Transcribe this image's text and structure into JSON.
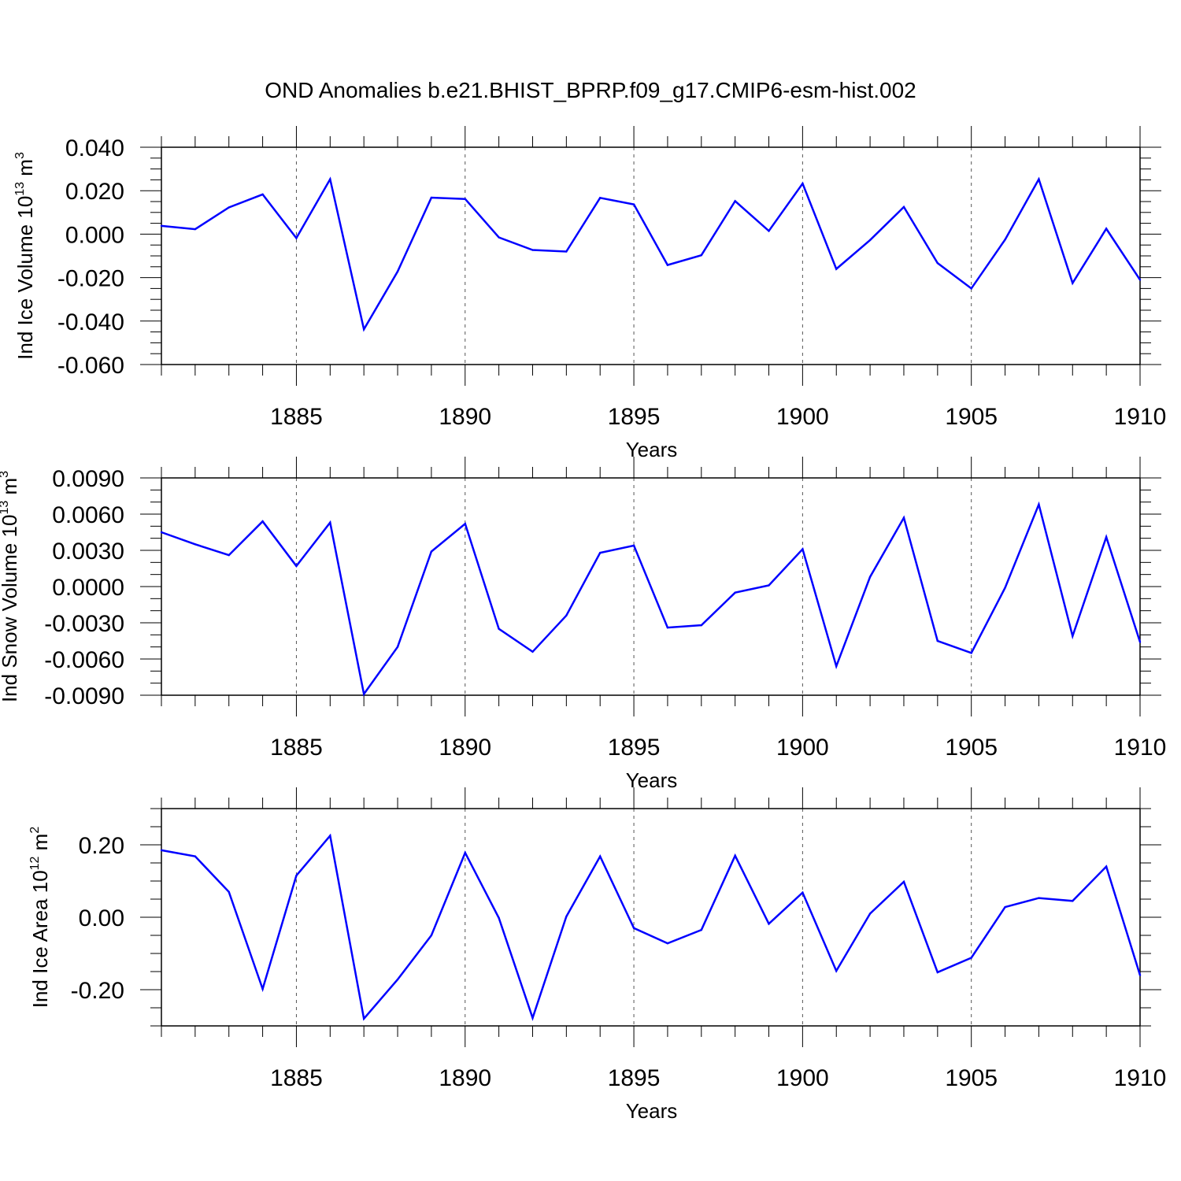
{
  "title": "OND Anomalies b.e21.BHIST_BPRP.f09_g17.CMIP6-esm-hist.002",
  "line_color": "#0000ff",
  "chart_data": [
    {
      "type": "line",
      "ylabel": {
        "main": "Ind Ice Volume 10",
        "exp": "13",
        "unit": " m",
        "unit_exp": "3"
      },
      "xlabel": "Years",
      "xlim": [
        1881,
        1910
      ],
      "ylim": [
        -0.06,
        0.04
      ],
      "yticks": [
        0.04,
        0.02,
        0.0,
        -0.02,
        -0.04,
        -0.06
      ],
      "ytick_labels": [
        "0.040",
        "0.020",
        "0.000",
        "-0.020",
        "-0.040",
        "-0.060"
      ],
      "y_minor_step": 0.005,
      "xticks": [
        1885,
        1890,
        1895,
        1900,
        1905,
        1910
      ],
      "xtick_labels": [
        "1885",
        "1890",
        "1895",
        "1900",
        "1905",
        "1910"
      ],
      "x": [
        1881,
        1882,
        1883,
        1884,
        1885,
        1886,
        1887,
        1888,
        1889,
        1890,
        1891,
        1892,
        1893,
        1894,
        1895,
        1896,
        1897,
        1898,
        1899,
        1900,
        1901,
        1902,
        1903,
        1904,
        1905,
        1906,
        1907,
        1908,
        1909,
        1910
      ],
      "values": [
        0.0038,
        0.0023,
        0.0123,
        0.0183,
        -0.0018,
        0.0253,
        -0.0438,
        -0.0172,
        0.0168,
        0.0162,
        -0.0015,
        -0.0073,
        -0.008,
        0.0167,
        0.0137,
        -0.0142,
        -0.0097,
        0.0152,
        0.0015,
        0.0233,
        -0.016,
        -0.0027,
        0.0125,
        -0.0133,
        -0.025,
        -0.0025,
        0.0253,
        -0.0225,
        0.0025,
        -0.021
      ]
    },
    {
      "type": "line",
      "ylabel": {
        "main": "Ind Snow Volume 10",
        "exp": "13",
        "unit": " m",
        "unit_exp": "3"
      },
      "xlabel": "Years",
      "xlim": [
        1881,
        1910
      ],
      "ylim": [
        -0.009,
        0.009
      ],
      "yticks": [
        0.009,
        0.006,
        0.003,
        0.0,
        -0.003,
        -0.006,
        -0.009
      ],
      "ytick_labels": [
        "0.0090",
        "0.0060",
        "0.0030",
        "0.0000",
        "-0.0030",
        "-0.0060",
        "-0.0090"
      ],
      "y_minor_step": 0.001,
      "xticks": [
        1885,
        1890,
        1895,
        1900,
        1905,
        1910
      ],
      "xtick_labels": [
        "1885",
        "1890",
        "1895",
        "1900",
        "1905",
        "1910"
      ],
      "x": [
        1881,
        1882,
        1883,
        1884,
        1885,
        1886,
        1887,
        1888,
        1889,
        1890,
        1891,
        1892,
        1893,
        1894,
        1895,
        1896,
        1897,
        1898,
        1899,
        1900,
        1901,
        1902,
        1903,
        1904,
        1905,
        1906,
        1907,
        1908,
        1909,
        1910
      ],
      "values": [
        0.0045,
        0.0035,
        0.0026,
        0.0054,
        0.0017,
        0.0053,
        -0.0089,
        -0.005,
        0.0029,
        0.0052,
        -0.0035,
        -0.0054,
        -0.0024,
        0.0028,
        0.0034,
        -0.0034,
        -0.0032,
        -0.0005,
        0.0001,
        0.0031,
        -0.0066,
        0.0008,
        0.0057,
        -0.0045,
        -0.0055,
        -0.0001,
        0.0068,
        -0.0041,
        0.0041,
        -0.0046
      ]
    },
    {
      "type": "line",
      "ylabel": {
        "main": "Ind Ice Area 10",
        "exp": "12",
        "unit": " m",
        "unit_exp": "2"
      },
      "xlabel": "Years",
      "xlim": [
        1881,
        1910
      ],
      "ylim": [
        -0.3,
        0.3
      ],
      "yticks": [
        0.2,
        0.0,
        -0.2
      ],
      "ytick_labels": [
        "0.20",
        "0.00",
        "-0.20"
      ],
      "y_minor_step": 0.05,
      "xticks": [
        1885,
        1890,
        1895,
        1900,
        1905,
        1910
      ],
      "xtick_labels": [
        "1885",
        "1890",
        "1895",
        "1900",
        "1905",
        "1910"
      ],
      "x": [
        1881,
        1882,
        1883,
        1884,
        1885,
        1886,
        1887,
        1888,
        1889,
        1890,
        1891,
        1892,
        1893,
        1894,
        1895,
        1896,
        1897,
        1898,
        1899,
        1900,
        1901,
        1902,
        1903,
        1904,
        1905,
        1906,
        1907,
        1908,
        1909,
        1910
      ],
      "values": [
        0.185,
        0.168,
        0.07,
        -0.198,
        0.115,
        0.225,
        -0.28,
        -0.172,
        -0.05,
        0.178,
        -0.002,
        -0.278,
        0.002,
        0.168,
        -0.03,
        -0.072,
        -0.035,
        0.17,
        -0.018,
        0.068,
        -0.148,
        0.01,
        0.098,
        -0.152,
        -0.112,
        0.028,
        0.053,
        0.045,
        0.14,
        -0.16
      ]
    }
  ]
}
